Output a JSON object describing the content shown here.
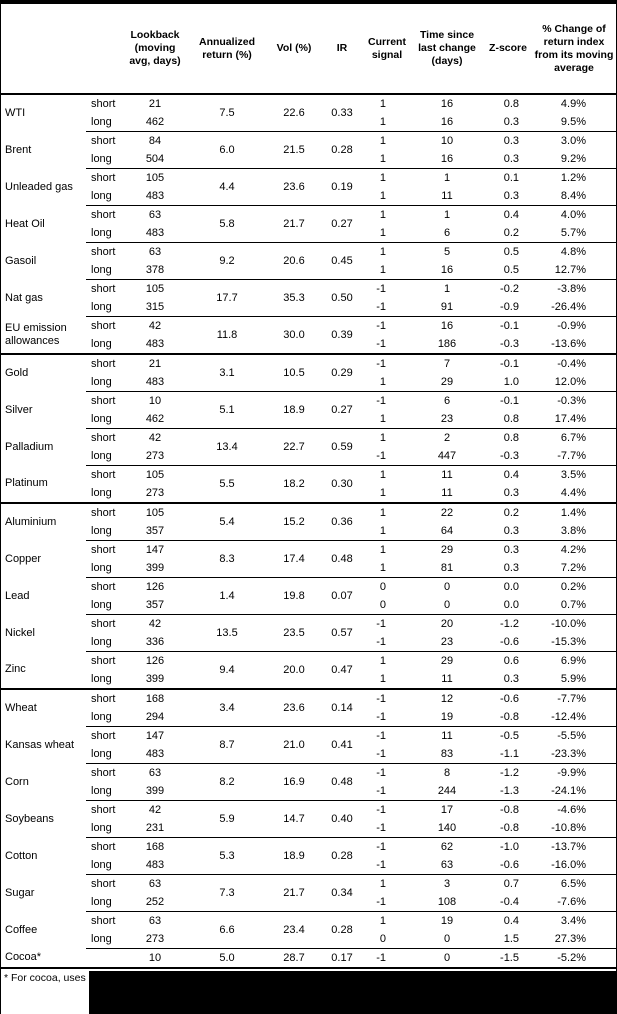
{
  "colors": {
    "border": "#000000",
    "background": "#ffffff",
    "text": "#000000",
    "redaction": "#000000"
  },
  "table": {
    "headers": [
      "Lookback (moving avg, days)",
      "Annualized return (%)",
      "Vol (%)",
      "IR",
      "Current signal",
      "Time since last change (days)",
      "Z-score",
      "% Change of return index from its moving average"
    ],
    "sections": [
      {
        "commodities": [
          {
            "name": "WTI",
            "ann": "7.5",
            "vol": "22.6",
            "ir": "0.33",
            "rows": [
              {
                "window": "short",
                "lookback": "21",
                "signal": "1",
                "time": "16",
                "z": "0.8",
                "pct": "4.9%"
              },
              {
                "window": "long",
                "lookback": "462",
                "signal": "1",
                "time": "16",
                "z": "0.3",
                "pct": "9.5%"
              }
            ]
          },
          {
            "name": "Brent",
            "ann": "6.0",
            "vol": "21.5",
            "ir": "0.28",
            "rows": [
              {
                "window": "short",
                "lookback": "84",
                "signal": "1",
                "time": "10",
                "z": "0.3",
                "pct": "3.0%"
              },
              {
                "window": "long",
                "lookback": "504",
                "signal": "1",
                "time": "16",
                "z": "0.3",
                "pct": "9.2%"
              }
            ]
          },
          {
            "name": "Unleaded gas",
            "ann": "4.4",
            "vol": "23.6",
            "ir": "0.19",
            "rows": [
              {
                "window": "short",
                "lookback": "105",
                "signal": "1",
                "time": "1",
                "z": "0.1",
                "pct": "1.2%"
              },
              {
                "window": "long",
                "lookback": "483",
                "signal": "1",
                "time": "11",
                "z": "0.3",
                "pct": "8.4%"
              }
            ]
          },
          {
            "name": "Heat Oil",
            "ann": "5.8",
            "vol": "21.7",
            "ir": "0.27",
            "rows": [
              {
                "window": "short",
                "lookback": "63",
                "signal": "1",
                "time": "1",
                "z": "0.4",
                "pct": "4.0%"
              },
              {
                "window": "long",
                "lookback": "483",
                "signal": "1",
                "time": "6",
                "z": "0.2",
                "pct": "5.7%"
              }
            ]
          },
          {
            "name": "Gasoil",
            "ann": "9.2",
            "vol": "20.6",
            "ir": "0.45",
            "rows": [
              {
                "window": "short",
                "lookback": "63",
                "signal": "1",
                "time": "5",
                "z": "0.5",
                "pct": "4.8%"
              },
              {
                "window": "long",
                "lookback": "378",
                "signal": "1",
                "time": "16",
                "z": "0.5",
                "pct": "12.7%"
              }
            ]
          },
          {
            "name": "Nat gas",
            "ann": "17.7",
            "vol": "35.3",
            "ir": "0.50",
            "rows": [
              {
                "window": "short",
                "lookback": "105",
                "signal": "-1",
                "time": "1",
                "z": "-0.2",
                "pct": "-3.8%"
              },
              {
                "window": "long",
                "lookback": "315",
                "signal": "-1",
                "time": "91",
                "z": "-0.9",
                "pct": "-26.4%"
              }
            ]
          },
          {
            "name": "EU emission allowances",
            "ann": "11.8",
            "vol": "30.0",
            "ir": "0.39",
            "rows": [
              {
                "window": "short",
                "lookback": "42",
                "signal": "-1",
                "time": "16",
                "z": "-0.1",
                "pct": "-0.9%"
              },
              {
                "window": "long",
                "lookback": "483",
                "signal": "-1",
                "time": "186",
                "z": "-0.3",
                "pct": "-13.6%"
              }
            ]
          }
        ]
      },
      {
        "commodities": [
          {
            "name": "Gold",
            "ann": "3.1",
            "vol": "10.5",
            "ir": "0.29",
            "rows": [
              {
                "window": "short",
                "lookback": "21",
                "signal": "-1",
                "time": "7",
                "z": "-0.1",
                "pct": "-0.4%"
              },
              {
                "window": "long",
                "lookback": "483",
                "signal": "1",
                "time": "29",
                "z": "1.0",
                "pct": "12.0%"
              }
            ]
          },
          {
            "name": "Silver",
            "ann": "5.1",
            "vol": "18.9",
            "ir": "0.27",
            "rows": [
              {
                "window": "short",
                "lookback": "10",
                "signal": "-1",
                "time": "6",
                "z": "-0.1",
                "pct": "-0.3%"
              },
              {
                "window": "long",
                "lookback": "462",
                "signal": "1",
                "time": "23",
                "z": "0.8",
                "pct": "17.4%"
              }
            ]
          },
          {
            "name": "Palladium",
            "ann": "13.4",
            "vol": "22.7",
            "ir": "0.59",
            "rows": [
              {
                "window": "short",
                "lookback": "42",
                "signal": "1",
                "time": "2",
                "z": "0.8",
                "pct": "6.7%"
              },
              {
                "window": "long",
                "lookback": "273",
                "signal": "-1",
                "time": "447",
                "z": "-0.3",
                "pct": "-7.7%"
              }
            ]
          },
          {
            "name": "Platinum",
            "ann": "5.5",
            "vol": "18.2",
            "ir": "0.30",
            "rows": [
              {
                "window": "short",
                "lookback": "105",
                "signal": "1",
                "time": "11",
                "z": "0.4",
                "pct": "3.5%"
              },
              {
                "window": "long",
                "lookback": "273",
                "signal": "1",
                "time": "11",
                "z": "0.3",
                "pct": "4.4%"
              }
            ]
          }
        ]
      },
      {
        "commodities": [
          {
            "name": "Aluminium",
            "ann": "5.4",
            "vol": "15.2",
            "ir": "0.36",
            "rows": [
              {
                "window": "short",
                "lookback": "105",
                "signal": "1",
                "time": "22",
                "z": "0.2",
                "pct": "1.4%"
              },
              {
                "window": "long",
                "lookback": "357",
                "signal": "1",
                "time": "64",
                "z": "0.3",
                "pct": "3.8%"
              }
            ]
          },
          {
            "name": "Copper",
            "ann": "8.3",
            "vol": "17.4",
            "ir": "0.48",
            "rows": [
              {
                "window": "short",
                "lookback": "147",
                "signal": "1",
                "time": "29",
                "z": "0.3",
                "pct": "4.2%"
              },
              {
                "window": "long",
                "lookback": "399",
                "signal": "1",
                "time": "81",
                "z": "0.3",
                "pct": "7.2%"
              }
            ]
          },
          {
            "name": "Lead",
            "ann": "1.4",
            "vol": "19.8",
            "ir": "0.07",
            "rows": [
              {
                "window": "short",
                "lookback": "126",
                "signal": "0",
                "time": "0",
                "z": "0.0",
                "pct": "0.2%"
              },
              {
                "window": "long",
                "lookback": "357",
                "signal": "0",
                "time": "0",
                "z": "0.0",
                "pct": "0.7%"
              }
            ]
          },
          {
            "name": "Nickel",
            "ann": "13.5",
            "vol": "23.5",
            "ir": "0.57",
            "rows": [
              {
                "window": "short",
                "lookback": "42",
                "signal": "-1",
                "time": "20",
                "z": "-1.2",
                "pct": "-10.0%"
              },
              {
                "window": "long",
                "lookback": "336",
                "signal": "-1",
                "time": "23",
                "z": "-0.6",
                "pct": "-15.3%"
              }
            ]
          },
          {
            "name": "Zinc",
            "ann": "9.4",
            "vol": "20.0",
            "ir": "0.47",
            "rows": [
              {
                "window": "short",
                "lookback": "126",
                "signal": "1",
                "time": "29",
                "z": "0.6",
                "pct": "6.9%"
              },
              {
                "window": "long",
                "lookback": "399",
                "signal": "1",
                "time": "11",
                "z": "0.3",
                "pct": "5.9%"
              }
            ]
          }
        ]
      },
      {
        "commodities": [
          {
            "name": "Wheat",
            "ann": "3.4",
            "vol": "23.6",
            "ir": "0.14",
            "rows": [
              {
                "window": "short",
                "lookback": "168",
                "signal": "-1",
                "time": "12",
                "z": "-0.6",
                "pct": "-7.7%"
              },
              {
                "window": "long",
                "lookback": "294",
                "signal": "-1",
                "time": "19",
                "z": "-0.8",
                "pct": "-12.4%"
              }
            ]
          },
          {
            "name": "Kansas wheat",
            "ann": "8.7",
            "vol": "21.0",
            "ir": "0.41",
            "rows": [
              {
                "window": "short",
                "lookback": "147",
                "signal": "-1",
                "time": "11",
                "z": "-0.5",
                "pct": "-5.5%"
              },
              {
                "window": "long",
                "lookback": "483",
                "signal": "-1",
                "time": "83",
                "z": "-1.1",
                "pct": "-23.3%"
              }
            ]
          },
          {
            "name": "Corn",
            "ann": "8.2",
            "vol": "16.9",
            "ir": "0.48",
            "rows": [
              {
                "window": "short",
                "lookback": "63",
                "signal": "-1",
                "time": "8",
                "z": "-1.2",
                "pct": "-9.9%"
              },
              {
                "window": "long",
                "lookback": "399",
                "signal": "-1",
                "time": "244",
                "z": "-1.3",
                "pct": "-24.1%"
              }
            ]
          },
          {
            "name": "Soybeans",
            "ann": "5.9",
            "vol": "14.7",
            "ir": "0.40",
            "rows": [
              {
                "window": "short",
                "lookback": "42",
                "signal": "-1",
                "time": "17",
                "z": "-0.8",
                "pct": "-4.6%"
              },
              {
                "window": "long",
                "lookback": "231",
                "signal": "-1",
                "time": "140",
                "z": "-0.8",
                "pct": "-10.8%"
              }
            ]
          },
          {
            "name": "Cotton",
            "ann": "5.3",
            "vol": "18.9",
            "ir": "0.28",
            "rows": [
              {
                "window": "short",
                "lookback": "168",
                "signal": "-1",
                "time": "62",
                "z": "-1.0",
                "pct": "-13.7%"
              },
              {
                "window": "long",
                "lookback": "483",
                "signal": "-1",
                "time": "63",
                "z": "-0.6",
                "pct": "-16.0%"
              }
            ]
          },
          {
            "name": "Sugar",
            "ann": "7.3",
            "vol": "21.7",
            "ir": "0.34",
            "rows": [
              {
                "window": "short",
                "lookback": "63",
                "signal": "1",
                "time": "3",
                "z": "0.7",
                "pct": "6.5%"
              },
              {
                "window": "long",
                "lookback": "252",
                "signal": "-1",
                "time": "108",
                "z": "-0.4",
                "pct": "-7.6%"
              }
            ]
          },
          {
            "name": "Coffee",
            "ann": "6.6",
            "vol": "23.4",
            "ir": "0.28",
            "rows": [
              {
                "window": "short",
                "lookback": "63",
                "signal": "1",
                "time": "19",
                "z": "0.4",
                "pct": "3.4%"
              },
              {
                "window": "long",
                "lookback": "273",
                "signal": "0",
                "time": "0",
                "z": "1.5",
                "pct": "27.3%"
              }
            ]
          },
          {
            "name": "Cocoa*",
            "ann": "5.0",
            "vol": "28.7",
            "ir": "0.17",
            "rows": [
              {
                "window": "",
                "lookback": "10",
                "signal": "-1",
                "time": "0",
                "z": "-1.5",
                "pct": "-5.2%"
              }
            ]
          }
        ]
      }
    ]
  },
  "footnote": {
    "visible_text": "* For cocoa, uses o",
    "redacted": true
  }
}
